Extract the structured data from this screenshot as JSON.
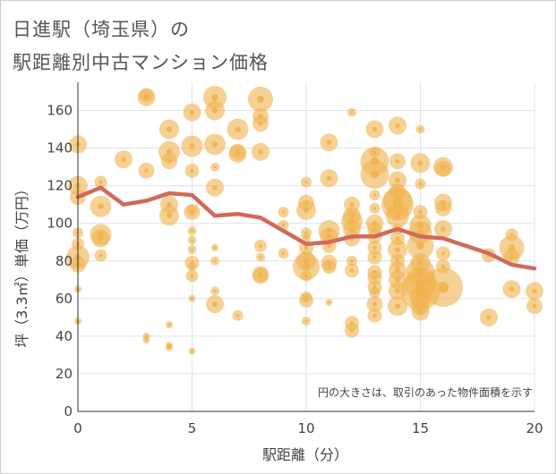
{
  "title_line1": "日進駅（埼玉県）の",
  "title_line2": "駅距離別中古マンション価格",
  "chart_data": {
    "type": "scatter",
    "title": "日進駅（埼玉県）の駅距離別中古マンション価格",
    "xlabel": "駅距離（分）",
    "ylabel": "坪（3.3㎡）単価（万円）",
    "xlim": [
      0,
      20
    ],
    "ylim": [
      0,
      175
    ],
    "xticks": [
      "0",
      "5",
      "10",
      "15",
      "20"
    ],
    "yticks": [
      "0",
      "20",
      "40",
      "60",
      "80",
      "100",
      "120",
      "140",
      "160"
    ],
    "grid": true,
    "annotation": "円の大きさは、取引のあった物件面積を示す",
    "colors": {
      "bubble": "#f0b24f",
      "line": "#d06a5a",
      "grid": "#dce3ea"
    },
    "trend_line": {
      "x": [
        0,
        1,
        2,
        3,
        4,
        5,
        6,
        7,
        8,
        9,
        10,
        11,
        12,
        13,
        14,
        15,
        16,
        17,
        18,
        19,
        20
      ],
      "y": [
        114,
        119,
        110,
        112,
        116,
        115,
        104,
        105,
        103,
        96,
        89,
        90,
        93,
        93,
        97,
        93,
        92,
        88,
        84,
        78,
        76
      ]
    },
    "bubbles": [
      {
        "x": 0,
        "y": 142,
        "s": 10
      },
      {
        "x": 0,
        "y": 120,
        "s": 11
      },
      {
        "x": 0,
        "y": 114,
        "s": 9
      },
      {
        "x": 0,
        "y": 95,
        "s": 6
      },
      {
        "x": 0,
        "y": 89,
        "s": 7
      },
      {
        "x": 0,
        "y": 82,
        "s": 13
      },
      {
        "x": 0,
        "y": 78,
        "s": 9
      },
      {
        "x": 0,
        "y": 65,
        "s": 4
      },
      {
        "x": 0,
        "y": 48,
        "s": 4
      },
      {
        "x": 1,
        "y": 122,
        "s": 7
      },
      {
        "x": 1,
        "y": 109,
        "s": 12
      },
      {
        "x": 1,
        "y": 94,
        "s": 12
      },
      {
        "x": 1,
        "y": 92,
        "s": 10
      },
      {
        "x": 1,
        "y": 83,
        "s": 7
      },
      {
        "x": 2,
        "y": 134,
        "s": 10
      },
      {
        "x": 3,
        "y": 168,
        "s": 8
      },
      {
        "x": 3,
        "y": 167,
        "s": 10
      },
      {
        "x": 3,
        "y": 128,
        "s": 9
      },
      {
        "x": 3,
        "y": 40,
        "s": 4
      },
      {
        "x": 3,
        "y": 38,
        "s": 4
      },
      {
        "x": 4,
        "y": 150,
        "s": 11
      },
      {
        "x": 4,
        "y": 138,
        "s": 12
      },
      {
        "x": 4,
        "y": 133,
        "s": 9
      },
      {
        "x": 4,
        "y": 110,
        "s": 10
      },
      {
        "x": 4,
        "y": 104,
        "s": 11
      },
      {
        "x": 4,
        "y": 46,
        "s": 4
      },
      {
        "x": 4,
        "y": 35,
        "s": 4
      },
      {
        "x": 4,
        "y": 34,
        "s": 4
      },
      {
        "x": 5,
        "y": 159,
        "s": 10
      },
      {
        "x": 5,
        "y": 141,
        "s": 12
      },
      {
        "x": 5,
        "y": 128,
        "s": 8
      },
      {
        "x": 5,
        "y": 107,
        "s": 6
      },
      {
        "x": 5,
        "y": 106,
        "s": 9
      },
      {
        "x": 5,
        "y": 96,
        "s": 5
      },
      {
        "x": 5,
        "y": 91,
        "s": 5
      },
      {
        "x": 5,
        "y": 86,
        "s": 5
      },
      {
        "x": 5,
        "y": 79,
        "s": 8
      },
      {
        "x": 5,
        "y": 77,
        "s": 5
      },
      {
        "x": 5,
        "y": 72,
        "s": 7
      },
      {
        "x": 5,
        "y": 60,
        "s": 4
      },
      {
        "x": 5,
        "y": 32,
        "s": 4
      },
      {
        "x": 6,
        "y": 167,
        "s": 13
      },
      {
        "x": 6,
        "y": 160,
        "s": 11
      },
      {
        "x": 6,
        "y": 142,
        "s": 12
      },
      {
        "x": 6,
        "y": 130,
        "s": 5
      },
      {
        "x": 6,
        "y": 119,
        "s": 10
      },
      {
        "x": 6,
        "y": 87,
        "s": 4
      },
      {
        "x": 6,
        "y": 80,
        "s": 5
      },
      {
        "x": 6,
        "y": 64,
        "s": 5
      },
      {
        "x": 6,
        "y": 57,
        "s": 10
      },
      {
        "x": 7,
        "y": 150,
        "s": 12
      },
      {
        "x": 7,
        "y": 138,
        "s": 9
      },
      {
        "x": 7,
        "y": 137,
        "s": 10
      },
      {
        "x": 7,
        "y": 51,
        "s": 6
      },
      {
        "x": 8,
        "y": 166,
        "s": 14
      },
      {
        "x": 8,
        "y": 157,
        "s": 9
      },
      {
        "x": 8,
        "y": 153,
        "s": 9
      },
      {
        "x": 8,
        "y": 138,
        "s": 10
      },
      {
        "x": 8,
        "y": 88,
        "s": 7
      },
      {
        "x": 8,
        "y": 82,
        "s": 5
      },
      {
        "x": 8,
        "y": 73,
        "s": 9
      },
      {
        "x": 8,
        "y": 72,
        "s": 9
      },
      {
        "x": 9,
        "y": 106,
        "s": 6
      },
      {
        "x": 9,
        "y": 99,
        "s": 6
      },
      {
        "x": 9,
        "y": 84,
        "s": 6
      },
      {
        "x": 10,
        "y": 122,
        "s": 6
      },
      {
        "x": 10,
        "y": 111,
        "s": 9
      },
      {
        "x": 10,
        "y": 107,
        "s": 11
      },
      {
        "x": 10,
        "y": 95,
        "s": 6
      },
      {
        "x": 10,
        "y": 92,
        "s": 5
      },
      {
        "x": 10,
        "y": 87,
        "s": 8
      },
      {
        "x": 10,
        "y": 80,
        "s": 11
      },
      {
        "x": 10,
        "y": 77,
        "s": 15
      },
      {
        "x": 10,
        "y": 72,
        "s": 6
      },
      {
        "x": 10,
        "y": 61,
        "s": 6
      },
      {
        "x": 10,
        "y": 59,
        "s": 8
      },
      {
        "x": 10,
        "y": 48,
        "s": 5
      },
      {
        "x": 11,
        "y": 143,
        "s": 10
      },
      {
        "x": 11,
        "y": 124,
        "s": 10
      },
      {
        "x": 11,
        "y": 96,
        "s": 12
      },
      {
        "x": 11,
        "y": 93,
        "s": 10
      },
      {
        "x": 11,
        "y": 88,
        "s": 8
      },
      {
        "x": 11,
        "y": 79,
        "s": 9
      },
      {
        "x": 11,
        "y": 77,
        "s": 8
      },
      {
        "x": 11,
        "y": 58,
        "s": 4
      },
      {
        "x": 12,
        "y": 159,
        "s": 5
      },
      {
        "x": 12,
        "y": 110,
        "s": 9
      },
      {
        "x": 12,
        "y": 104,
        "s": 10
      },
      {
        "x": 12,
        "y": 101,
        "s": 12
      },
      {
        "x": 12,
        "y": 97,
        "s": 10
      },
      {
        "x": 12,
        "y": 92,
        "s": 9
      },
      {
        "x": 12,
        "y": 80,
        "s": 6
      },
      {
        "x": 12,
        "y": 75,
        "s": 8
      },
      {
        "x": 12,
        "y": 47,
        "s": 8
      },
      {
        "x": 12,
        "y": 43,
        "s": 8
      },
      {
        "x": 13,
        "y": 150,
        "s": 10
      },
      {
        "x": 13,
        "y": 138,
        "s": 6
      },
      {
        "x": 13,
        "y": 133,
        "s": 16
      },
      {
        "x": 13,
        "y": 126,
        "s": 16
      },
      {
        "x": 13,
        "y": 115,
        "s": 6
      },
      {
        "x": 13,
        "y": 108,
        "s": 6
      },
      {
        "x": 13,
        "y": 100,
        "s": 10
      },
      {
        "x": 13,
        "y": 97,
        "s": 8
      },
      {
        "x": 13,
        "y": 93,
        "s": 8
      },
      {
        "x": 13,
        "y": 87,
        "s": 8
      },
      {
        "x": 13,
        "y": 82,
        "s": 8
      },
      {
        "x": 13,
        "y": 74,
        "s": 8
      },
      {
        "x": 13,
        "y": 71,
        "s": 8
      },
      {
        "x": 13,
        "y": 66,
        "s": 8
      },
      {
        "x": 13,
        "y": 63,
        "s": 6
      },
      {
        "x": 13,
        "y": 57,
        "s": 9
      },
      {
        "x": 13,
        "y": 51,
        "s": 8
      },
      {
        "x": 14,
        "y": 152,
        "s": 10
      },
      {
        "x": 14,
        "y": 133,
        "s": 9
      },
      {
        "x": 14,
        "y": 123,
        "s": 10
      },
      {
        "x": 14,
        "y": 117,
        "s": 9
      },
      {
        "x": 14,
        "y": 112,
        "s": 16
      },
      {
        "x": 14,
        "y": 110,
        "s": 18
      },
      {
        "x": 14,
        "y": 104,
        "s": 13
      },
      {
        "x": 14,
        "y": 97,
        "s": 6
      },
      {
        "x": 14,
        "y": 92,
        "s": 8
      },
      {
        "x": 14,
        "y": 86,
        "s": 11
      },
      {
        "x": 14,
        "y": 80,
        "s": 8
      },
      {
        "x": 14,
        "y": 75,
        "s": 10
      },
      {
        "x": 14,
        "y": 70,
        "s": 10
      },
      {
        "x": 14,
        "y": 64,
        "s": 10
      },
      {
        "x": 14,
        "y": 56,
        "s": 11
      },
      {
        "x": 15,
        "y": 150,
        "s": 5
      },
      {
        "x": 15,
        "y": 132,
        "s": 11
      },
      {
        "x": 15,
        "y": 121,
        "s": 6
      },
      {
        "x": 15,
        "y": 106,
        "s": 8
      },
      {
        "x": 15,
        "y": 99,
        "s": 12
      },
      {
        "x": 15,
        "y": 95,
        "s": 13
      },
      {
        "x": 15,
        "y": 88,
        "s": 15
      },
      {
        "x": 15,
        "y": 79,
        "s": 11
      },
      {
        "x": 15,
        "y": 74,
        "s": 16
      },
      {
        "x": 15,
        "y": 68,
        "s": 18
      },
      {
        "x": 15,
        "y": 64,
        "s": 22
      },
      {
        "x": 15,
        "y": 61,
        "s": 12
      },
      {
        "x": 15,
        "y": 56,
        "s": 10
      },
      {
        "x": 15,
        "y": 53,
        "s": 10
      },
      {
        "x": 16,
        "y": 130,
        "s": 11
      },
      {
        "x": 16,
        "y": 129,
        "s": 9
      },
      {
        "x": 16,
        "y": 111,
        "s": 10
      },
      {
        "x": 16,
        "y": 108,
        "s": 9
      },
      {
        "x": 16,
        "y": 97,
        "s": 10
      },
      {
        "x": 16,
        "y": 84,
        "s": 8
      },
      {
        "x": 16,
        "y": 77,
        "s": 8
      },
      {
        "x": 16,
        "y": 66,
        "s": 22
      },
      {
        "x": 18,
        "y": 83,
        "s": 8
      },
      {
        "x": 18,
        "y": 50,
        "s": 10
      },
      {
        "x": 19,
        "y": 94,
        "s": 7
      },
      {
        "x": 19,
        "y": 87,
        "s": 14
      },
      {
        "x": 19,
        "y": 82,
        "s": 9
      },
      {
        "x": 19,
        "y": 65,
        "s": 10
      },
      {
        "x": 20,
        "y": 64,
        "s": 10
      },
      {
        "x": 20,
        "y": 56,
        "s": 9
      }
    ]
  }
}
